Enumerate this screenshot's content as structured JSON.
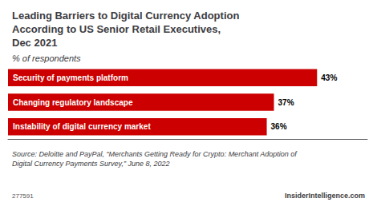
{
  "chart_data": {
    "type": "bar",
    "orientation": "horizontal",
    "title": "Leading Barriers to Digital Currency Adoption\nAccording to US Senior Retail Executives,\nDec 2021",
    "subtitle": "% of respondents",
    "categories": [
      "Security of payments platform",
      "Changing regulatory landscape",
      "Instability of digital currency market"
    ],
    "values": [
      43,
      37,
      36
    ],
    "value_labels": [
      "43%",
      "37%",
      "36%"
    ],
    "data_labels": true,
    "color": "#cc0000",
    "xlim": [
      0,
      50
    ],
    "grid": false,
    "tick_labels": "y",
    "annotations": [
      "Source: Deloitte and PayPal, “Merchants Getting Ready for Crypto: Merchant Adoption of\nDigital Currency Payments Survey,” June 8, 2022",
      "277591",
      "InsiderIntelligence.com"
    ]
  }
}
